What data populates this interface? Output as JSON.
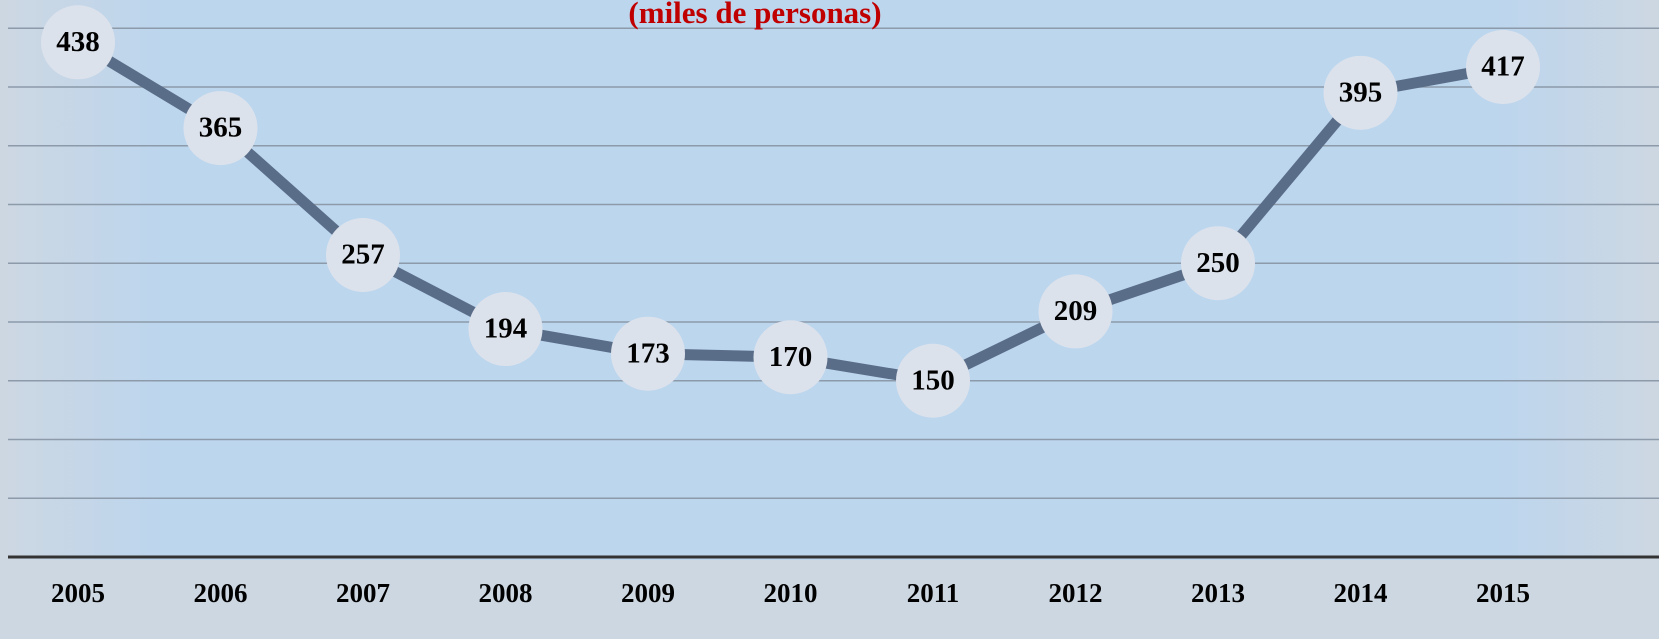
{
  "chart_data": {
    "type": "line",
    "title": "(miles de personas)",
    "categories": [
      "2005",
      "2006",
      "2007",
      "2008",
      "2009",
      "2010",
      "2011",
      "2012",
      "2013",
      "2014",
      "2015"
    ],
    "values": [
      438,
      365,
      257,
      194,
      173,
      170,
      150,
      209,
      250,
      395,
      417
    ],
    "color": "#5a6d88",
    "ylim": [
      0,
      474
    ],
    "yticks": [
      0,
      50,
      100,
      150,
      200,
      250,
      300,
      350,
      400,
      450
    ],
    "grid": true
  }
}
